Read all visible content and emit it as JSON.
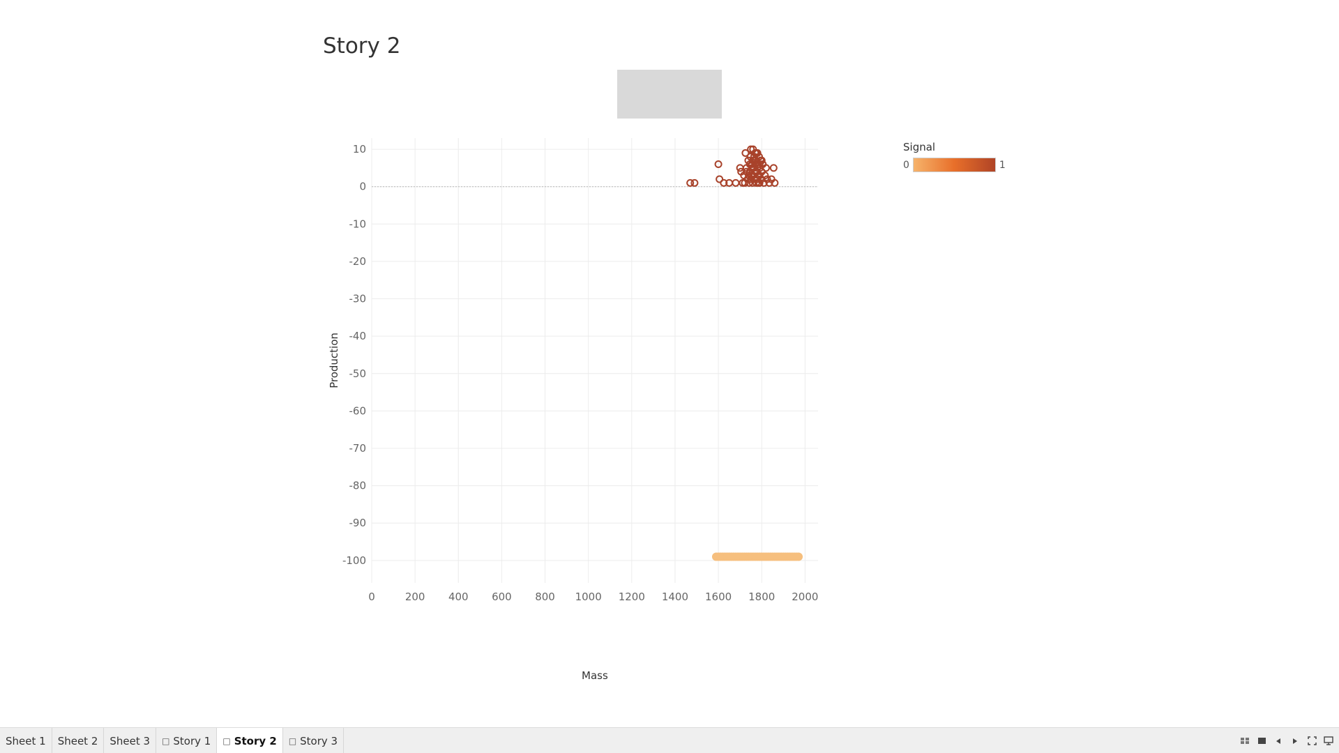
{
  "story": {
    "title": "Story 2"
  },
  "legend": {
    "title": "Signal",
    "min_label": "0",
    "max_label": "1",
    "colors": [
      "#f6b36b",
      "#e86f2a",
      "#b04426"
    ]
  },
  "chart_data": {
    "type": "scatter",
    "title": "",
    "xlabel": "Mass",
    "ylabel": "Production",
    "xlim": [
      0,
      2060
    ],
    "ylim": [
      -106,
      13
    ],
    "x_ticks": [
      "0",
      "200",
      "400",
      "600",
      "800",
      "1000",
      "1200",
      "1400",
      "1600",
      "1800",
      "2000"
    ],
    "y_ticks": [
      "10",
      "0",
      "-10",
      "-20",
      "-30",
      "-40",
      "-50",
      "-60",
      "-70",
      "-80",
      "-90",
      "-100"
    ],
    "x_tick_values": [
      0,
      200,
      400,
      600,
      800,
      1000,
      1200,
      1400,
      1600,
      1800,
      2000
    ],
    "y_tick_values": [
      10,
      0,
      -10,
      -20,
      -30,
      -40,
      -50,
      -60,
      -70,
      -80,
      -90,
      -100
    ],
    "grid": true,
    "zero_line": true,
    "color_field": "Signal",
    "series": [
      {
        "signal": 1,
        "color": "#a8422a",
        "x": [
          1470,
          1490,
          1600,
          1605,
          1625,
          1650,
          1680,
          1700,
          1705,
          1712,
          1718,
          1722,
          1725,
          1730,
          1735,
          1738,
          1742,
          1745,
          1748,
          1750,
          1752,
          1755,
          1758,
          1760,
          1762,
          1765,
          1768,
          1770,
          1772,
          1775,
          1778,
          1780,
          1782,
          1785,
          1788,
          1790,
          1792,
          1795,
          1798,
          1800,
          1805,
          1810,
          1815,
          1820,
          1825,
          1835,
          1845,
          1855,
          1860,
          1760,
          1770,
          1780,
          1790,
          1800,
          1750,
          1740,
          1730,
          1760,
          1770,
          1780,
          1790,
          1765,
          1775,
          1785,
          1755,
          1745
        ],
        "y": [
          1,
          1,
          6,
          2,
          1,
          1,
          1,
          5,
          4,
          1,
          3,
          1,
          9,
          5,
          2,
          7,
          1,
          4,
          8,
          10,
          3,
          6,
          1,
          10,
          5,
          8,
          2,
          9,
          7,
          1,
          4,
          9,
          6,
          3,
          8,
          1,
          5,
          7,
          2,
          4,
          6,
          1,
          3,
          5,
          2,
          1,
          2,
          5,
          1,
          3,
          4,
          5,
          6,
          7,
          2,
          3,
          4,
          7,
          6,
          2,
          3,
          8,
          9,
          1,
          5,
          6
        ]
      },
      {
        "signal": 0,
        "color": "#f6bf7e",
        "x": [
          1590,
          1600,
          1610,
          1620,
          1630,
          1640,
          1650,
          1660,
          1670,
          1680,
          1690,
          1700,
          1710,
          1720,
          1730,
          1740,
          1750,
          1760,
          1770,
          1780,
          1790,
          1800,
          1810,
          1820,
          1830,
          1840,
          1850,
          1860,
          1870,
          1880,
          1890,
          1900,
          1910,
          1920,
          1930,
          1940,
          1950,
          1960,
          1970
        ],
        "y": [
          -99,
          -99,
          -99,
          -99,
          -99,
          -99,
          -99,
          -99,
          -99,
          -99,
          -99,
          -99,
          -99,
          -99,
          -99,
          -99,
          -99,
          -99,
          -99,
          -99,
          -99,
          -99,
          -99,
          -99,
          -99,
          -99,
          -99,
          -99,
          -99,
          -99,
          -99,
          -99,
          -99,
          -99,
          -99,
          -99,
          -99,
          -99,
          -99
        ]
      }
    ]
  },
  "tabs": [
    {
      "label": "Sheet 1",
      "type": "sheet",
      "active": false
    },
    {
      "label": "Sheet 2",
      "type": "sheet",
      "active": false
    },
    {
      "label": "Sheet 3",
      "type": "sheet",
      "active": false
    },
    {
      "label": "Story 1",
      "type": "story",
      "active": false
    },
    {
      "label": "Story 2",
      "type": "story",
      "active": true
    },
    {
      "label": "Story 3",
      "type": "story",
      "active": false
    }
  ],
  "controls": [
    {
      "name": "sheet-sorter-icon"
    },
    {
      "name": "filmstrip-icon"
    },
    {
      "name": "previous-icon"
    },
    {
      "name": "next-icon"
    },
    {
      "name": "fullscreen-icon"
    },
    {
      "name": "presentation-mode-icon"
    }
  ]
}
